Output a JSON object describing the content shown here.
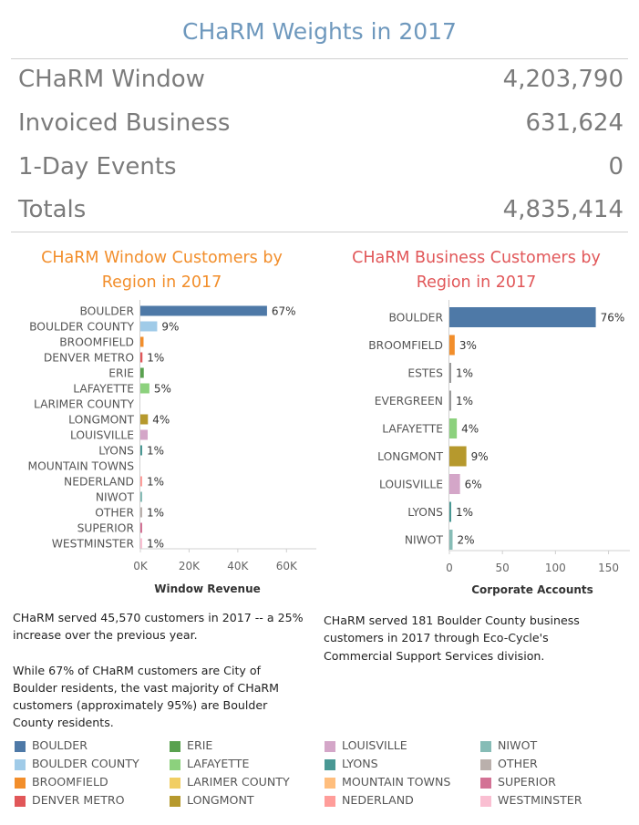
{
  "title": "CHaRM Weights in 2017",
  "stats": [
    {
      "label": "CHaRM Window",
      "value": "4,203,790"
    },
    {
      "label": "Invoiced Business",
      "value": "631,624"
    },
    {
      "label": "1-Day Events",
      "value": "0"
    },
    {
      "label": "Totals",
      "value": "4,835,414"
    }
  ],
  "colors": {
    "BOULDER": "#4e79a7",
    "BOULDER COUNTY": "#a0cbe8",
    "BROOMFIELD": "#f28e2b",
    "DENVER METRO": "#e15759",
    "ERIE": "#59a14f",
    "LAFAYETTE": "#8cd17d",
    "LARIMER COUNTY": "#f1ce63",
    "LONGMONT": "#b6992d",
    "LOUISVILLE": "#d4a6c8",
    "LYONS": "#499894",
    "MOUNTAIN TOWNS": "#ffbe7d",
    "NEDERLAND": "#ff9d9a",
    "NIWOT": "#86bcb6",
    "OTHER": "#bab0ac",
    "SUPERIOR": "#d37295",
    "WESTMINSTER": "#fabfd2"
  },
  "chart_data": [
    {
      "type": "bar",
      "orientation": "horizontal",
      "title": "CHaRM Window Customers by Region in 2017",
      "title_color": "#f28e2b",
      "xlabel": "Window Revenue",
      "ylabel": "",
      "xlim": [
        0,
        70000
      ],
      "ticks": [
        0,
        20000,
        40000,
        60000
      ],
      "tick_labels": [
        "0K",
        "20K",
        "40K",
        "60K"
      ],
      "categories": [
        "BOULDER",
        "BOULDER COUNTY",
        "BROOMFIELD",
        "DENVER METRO",
        "ERIE",
        "LAFAYETTE",
        "LARIMER COUNTY",
        "LONGMONT",
        "LOUISVILLE",
        "LYONS",
        "MOUNTAIN TOWNS",
        "NEDERLAND",
        "NIWOT",
        "OTHER",
        "SUPERIOR",
        "WESTMINSTER"
      ],
      "values": [
        52000,
        6900,
        1300,
        850,
        1400,
        3700,
        0,
        3100,
        3000,
        600,
        0,
        450,
        350,
        650,
        450,
        500
      ],
      "labels": [
        "67%",
        "9%",
        "",
        "1%",
        "",
        "5%",
        "",
        "4%",
        "",
        "1%",
        "",
        "1%",
        "",
        "1%",
        "",
        "1%"
      ]
    },
    {
      "type": "bar",
      "orientation": "horizontal",
      "title": "CHaRM Business Customers by Region in 2017",
      "title_color": "#e15759",
      "xlabel": "Corporate Accounts",
      "ylabel": "",
      "xlim": [
        0,
        165
      ],
      "ticks": [
        0,
        50,
        100,
        150
      ],
      "tick_labels": [
        "0",
        "50",
        "100",
        "150"
      ],
      "categories": [
        "BOULDER",
        "BROOMFIELD",
        "ESTES",
        "EVERGREEN",
        "LAFAYETTE",
        "LONGMONT",
        "LOUISVILLE",
        "LYONS",
        "NIWOT"
      ],
      "values": [
        138,
        5,
        1,
        1,
        7,
        16,
        10,
        1,
        3
      ],
      "labels": [
        "76%",
        "3%",
        "1%",
        "1%",
        "4%",
        "9%",
        "6%",
        "1%",
        "2%"
      ]
    }
  ],
  "descriptions": {
    "window": [
      "CHaRM served 45,570 customers in 2017 -- a 25% increase over the previous year.",
      "While 67% of CHaRM customers are City of Boulder residents, the vast majority of CHaRM customers (approximately 95%) are Boulder County residents."
    ],
    "business": [
      "CHaRM served 181 Boulder County business customers in 2017 through Eco-Cycle's Commercial Support Services division."
    ]
  },
  "legend": [
    "BOULDER",
    "BOULDER COUNTY",
    "BROOMFIELD",
    "DENVER METRO",
    "ERIE",
    "LAFAYETTE",
    "LARIMER COUNTY",
    "LONGMONT",
    "LOUISVILLE",
    "LYONS",
    "MOUNTAIN TOWNS",
    "NEDERLAND",
    "NIWOT",
    "OTHER",
    "SUPERIOR",
    "WESTMINSTER"
  ]
}
